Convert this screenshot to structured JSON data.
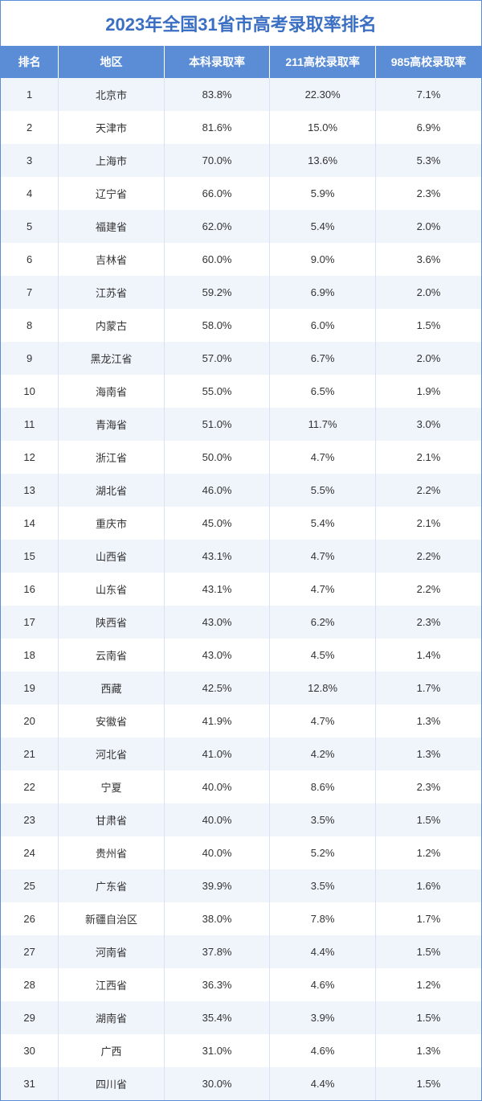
{
  "title": "2023年全国31省市高考录取率排名",
  "styling": {
    "header_bg": "#5b8dd6",
    "header_text_color": "#ffffff",
    "title_color": "#3b6fc4",
    "row_odd_bg": "#f0f4fb",
    "row_even_bg": "#ffffff",
    "cell_text_color": "#333333",
    "border_color": "#5b8dd6",
    "title_fontsize": 22,
    "header_fontsize": 14,
    "cell_fontsize": 13,
    "column_widths_pct": [
      12,
      22,
      22,
      22,
      22
    ]
  },
  "columns": [
    {
      "key": "rank",
      "label": "排名"
    },
    {
      "key": "region",
      "label": "地区"
    },
    {
      "key": "rate_benke",
      "label": "本科录取率"
    },
    {
      "key": "rate_211",
      "label": "211高校录取率"
    },
    {
      "key": "rate_985",
      "label": "985高校录取率"
    }
  ],
  "rows": [
    {
      "rank": "1",
      "region": "北京市",
      "rate_benke": "83.8%",
      "rate_211": "22.30%",
      "rate_985": "7.1%"
    },
    {
      "rank": "2",
      "region": "天津市",
      "rate_benke": "81.6%",
      "rate_211": "15.0%",
      "rate_985": "6.9%"
    },
    {
      "rank": "3",
      "region": "上海市",
      "rate_benke": "70.0%",
      "rate_211": "13.6%",
      "rate_985": "5.3%"
    },
    {
      "rank": "4",
      "region": "辽宁省",
      "rate_benke": "66.0%",
      "rate_211": "5.9%",
      "rate_985": "2.3%"
    },
    {
      "rank": "5",
      "region": "福建省",
      "rate_benke": "62.0%",
      "rate_211": "5.4%",
      "rate_985": "2.0%"
    },
    {
      "rank": "6",
      "region": "吉林省",
      "rate_benke": "60.0%",
      "rate_211": "9.0%",
      "rate_985": "3.6%"
    },
    {
      "rank": "7",
      "region": "江苏省",
      "rate_benke": "59.2%",
      "rate_211": "6.9%",
      "rate_985": "2.0%"
    },
    {
      "rank": "8",
      "region": "内蒙古",
      "rate_benke": "58.0%",
      "rate_211": "6.0%",
      "rate_985": "1.5%"
    },
    {
      "rank": "9",
      "region": "黑龙江省",
      "rate_benke": "57.0%",
      "rate_211": "6.7%",
      "rate_985": "2.0%"
    },
    {
      "rank": "10",
      "region": "海南省",
      "rate_benke": "55.0%",
      "rate_211": "6.5%",
      "rate_985": "1.9%"
    },
    {
      "rank": "11",
      "region": "青海省",
      "rate_benke": "51.0%",
      "rate_211": "11.7%",
      "rate_985": "3.0%"
    },
    {
      "rank": "12",
      "region": "浙江省",
      "rate_benke": "50.0%",
      "rate_211": "4.7%",
      "rate_985": "2.1%"
    },
    {
      "rank": "13",
      "region": "湖北省",
      "rate_benke": "46.0%",
      "rate_211": "5.5%",
      "rate_985": "2.2%"
    },
    {
      "rank": "14",
      "region": "重庆市",
      "rate_benke": "45.0%",
      "rate_211": "5.4%",
      "rate_985": "2.1%"
    },
    {
      "rank": "15",
      "region": "山西省",
      "rate_benke": "43.1%",
      "rate_211": "4.7%",
      "rate_985": "2.2%"
    },
    {
      "rank": "16",
      "region": "山东省",
      "rate_benke": "43.1%",
      "rate_211": "4.7%",
      "rate_985": "2.2%"
    },
    {
      "rank": "17",
      "region": "陕西省",
      "rate_benke": "43.0%",
      "rate_211": "6.2%",
      "rate_985": "2.3%"
    },
    {
      "rank": "18",
      "region": "云南省",
      "rate_benke": "43.0%",
      "rate_211": "4.5%",
      "rate_985": "1.4%"
    },
    {
      "rank": "19",
      "region": "西藏",
      "rate_benke": "42.5%",
      "rate_211": "12.8%",
      "rate_985": "1.7%"
    },
    {
      "rank": "20",
      "region": "安徽省",
      "rate_benke": "41.9%",
      "rate_211": "4.7%",
      "rate_985": "1.3%"
    },
    {
      "rank": "21",
      "region": "河北省",
      "rate_benke": "41.0%",
      "rate_211": "4.2%",
      "rate_985": "1.3%"
    },
    {
      "rank": "22",
      "region": "宁夏",
      "rate_benke": "40.0%",
      "rate_211": "8.6%",
      "rate_985": "2.3%"
    },
    {
      "rank": "23",
      "region": "甘肃省",
      "rate_benke": "40.0%",
      "rate_211": "3.5%",
      "rate_985": "1.5%"
    },
    {
      "rank": "24",
      "region": "贵州省",
      "rate_benke": "40.0%",
      "rate_211": "5.2%",
      "rate_985": "1.2%"
    },
    {
      "rank": "25",
      "region": "广东省",
      "rate_benke": "39.9%",
      "rate_211": "3.5%",
      "rate_985": "1.6%"
    },
    {
      "rank": "26",
      "region": "新疆自治区",
      "rate_benke": "38.0%",
      "rate_211": "7.8%",
      "rate_985": "1.7%"
    },
    {
      "rank": "27",
      "region": "河南省",
      "rate_benke": "37.8%",
      "rate_211": "4.4%",
      "rate_985": "1.5%"
    },
    {
      "rank": "28",
      "region": "江西省",
      "rate_benke": "36.3%",
      "rate_211": "4.6%",
      "rate_985": "1.2%"
    },
    {
      "rank": "29",
      "region": "湖南省",
      "rate_benke": "35.4%",
      "rate_211": "3.9%",
      "rate_985": "1.5%"
    },
    {
      "rank": "30",
      "region": "广西",
      "rate_benke": "31.0%",
      "rate_211": "4.6%",
      "rate_985": "1.3%"
    },
    {
      "rank": "31",
      "region": "四川省",
      "rate_benke": "30.0%",
      "rate_211": "4.4%",
      "rate_985": "1.5%"
    }
  ]
}
